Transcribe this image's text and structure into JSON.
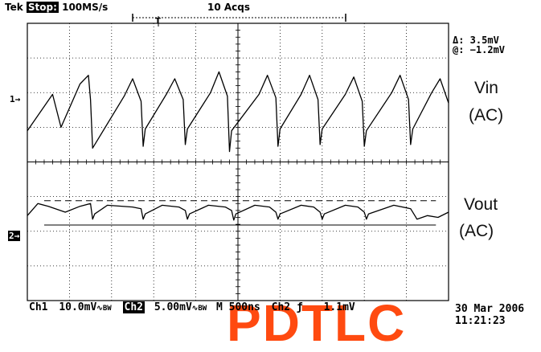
{
  "header": {
    "brand": "Tek",
    "run_state": "Stop:",
    "sample_rate": "100MS/s",
    "acquisitions": "10 Acqs",
    "trigger_marker": "T"
  },
  "measurement": {
    "delta": "Δ: 3.5mV",
    "at": "@: −1.2mV"
  },
  "labels": {
    "vin": "Vin",
    "vin_coupling": "(AC)",
    "vout": "Vout",
    "vout_coupling": "(AC)"
  },
  "channel_markers": {
    "ch1": "1→",
    "ch2": "2→"
  },
  "footer": {
    "ch1_label": "Ch1",
    "ch1_scale": "10.0mV",
    "ch1_bw": "∿BW",
    "ch2_label": "Ch2",
    "ch2_scale": "5.00mV",
    "ch2_bw": "∿BW",
    "timebase": "M  500ns",
    "trigger": "Ch2 ƒ",
    "trigger_level": "1.1mV",
    "date": "30 Mar 2006",
    "time": "11:21:23"
  },
  "watermark": "PDTLC",
  "colors": {
    "trace": "#000000",
    "grid": "#000000",
    "watermark": "#ff4a10"
  },
  "chart_data": {
    "type": "line",
    "grid": {
      "divisions_x": 10,
      "divisions_y": 8
    },
    "series": [
      {
        "name": "Vin",
        "units": "div",
        "x": [
          0,
          0.6,
          0.8,
          1.25,
          1.45,
          1.5,
          1.55,
          2.3,
          2.5,
          2.7,
          2.75,
          2.8,
          3.3,
          3.5,
          3.7,
          3.75,
          3.8,
          4.35,
          4.55,
          4.75,
          4.8,
          4.85,
          5.5,
          5.7,
          5.9,
          5.95,
          6.0,
          6.5,
          6.7,
          6.9,
          6.95,
          7.0,
          7.55,
          7.75,
          7.95,
          8.0,
          8.05,
          8.65,
          8.85,
          9.05,
          9.1,
          9.15,
          9.6,
          9.8,
          10
        ],
        "y": [
          3.1,
          2.05,
          3.0,
          1.75,
          1.5,
          2.2,
          3.6,
          2.1,
          1.6,
          2.25,
          3.55,
          3.05,
          2.05,
          1.6,
          2.2,
          3.5,
          3.05,
          2.0,
          1.4,
          2.1,
          3.7,
          3.1,
          2.05,
          1.5,
          2.15,
          3.55,
          3.05,
          2.05,
          1.5,
          2.2,
          3.5,
          3.05,
          2.05,
          1.55,
          2.25,
          3.55,
          3.1,
          2.0,
          1.5,
          2.2,
          3.5,
          3.05,
          2.0,
          1.6,
          2.3
        ]
      },
      {
        "name": "Vout",
        "units": "div",
        "x": [
          0,
          0.25,
          0.5,
          0.9,
          1.25,
          1.5,
          1.55,
          1.6,
          1.9,
          2.5,
          2.7,
          2.75,
          2.8,
          3.2,
          3.6,
          3.75,
          3.8,
          3.85,
          4.3,
          4.7,
          4.85,
          4.9,
          4.95,
          5.4,
          5.75,
          5.9,
          5.95,
          6.0,
          6.5,
          6.8,
          6.95,
          7.0,
          7.05,
          7.55,
          7.85,
          8.0,
          8.05,
          8.1,
          8.7,
          9.1,
          9.2,
          9.25,
          9.5,
          9.75,
          10
        ],
        "y": [
          5.55,
          5.2,
          5.28,
          5.45,
          5.28,
          5.2,
          5.65,
          5.5,
          5.25,
          5.3,
          5.35,
          5.65,
          5.5,
          5.25,
          5.3,
          5.4,
          5.65,
          5.5,
          5.25,
          5.3,
          5.4,
          5.68,
          5.5,
          5.25,
          5.3,
          5.45,
          5.65,
          5.5,
          5.25,
          5.3,
          5.45,
          5.65,
          5.5,
          5.25,
          5.3,
          5.45,
          5.65,
          5.5,
          5.25,
          5.35,
          5.55,
          5.65,
          5.55,
          5.6,
          5.45
        ]
      }
    ],
    "cursors": [
      {
        "name": "upper",
        "style": "dashed",
        "y": 5.12,
        "x_range": [
          0.4,
          9.7
        ]
      },
      {
        "name": "lower",
        "style": "solid",
        "y": 5.82,
        "x_range": [
          0.4,
          9.7
        ]
      }
    ]
  }
}
